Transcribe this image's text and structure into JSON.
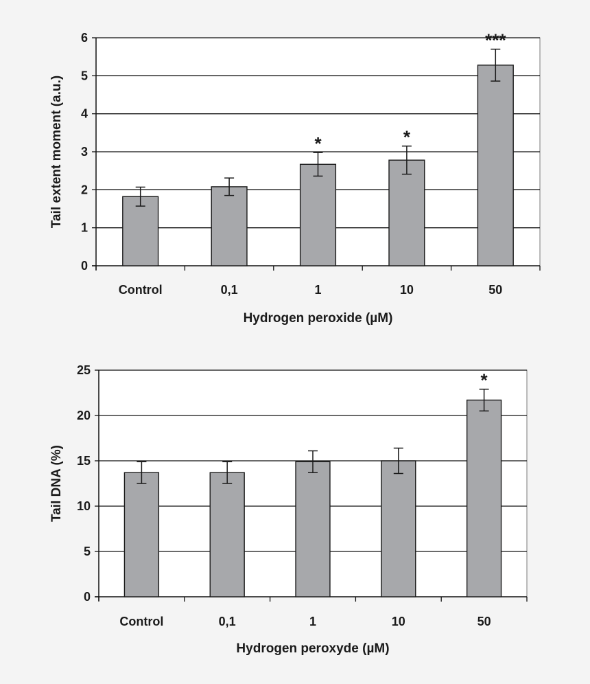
{
  "chart_data": [
    {
      "type": "bar",
      "title": "",
      "categories": [
        "Control",
        "0,1",
        "1",
        "10",
        "50"
      ],
      "values": [
        1.82,
        2.08,
        2.67,
        2.78,
        5.28
      ],
      "errors": [
        0.25,
        0.23,
        0.31,
        0.37,
        0.42
      ],
      "significance": [
        "",
        "",
        "*",
        "*",
        "***"
      ],
      "xlabel": "Hydrogen peroxide (µM)",
      "ylabel": "Tail extent moment (a.u.)",
      "ylim": [
        0,
        6
      ],
      "yticks": [
        0,
        1,
        2,
        3,
        4,
        5,
        6
      ],
      "grid": true,
      "legend": "none",
      "colors": {
        "bar": "#a7a8ab",
        "stroke": "#1a1a1a"
      }
    },
    {
      "type": "bar",
      "title": "",
      "categories": [
        "Control",
        "0,1",
        "1",
        "10",
        "50"
      ],
      "values": [
        13.7,
        13.7,
        14.9,
        15.0,
        21.7
      ],
      "errors": [
        1.2,
        1.2,
        1.2,
        1.4,
        1.2
      ],
      "significance": [
        "",
        "",
        "",
        "",
        "*"
      ],
      "xlabel": "Hydrogen peroxyde (µM)",
      "ylabel": "Tail DNA (%)",
      "ylim": [
        0,
        25
      ],
      "yticks": [
        0,
        5,
        10,
        15,
        20,
        25
      ],
      "grid": true,
      "legend": "none",
      "colors": {
        "bar": "#a7a8ab",
        "stroke": "#1a1a1a"
      }
    }
  ]
}
